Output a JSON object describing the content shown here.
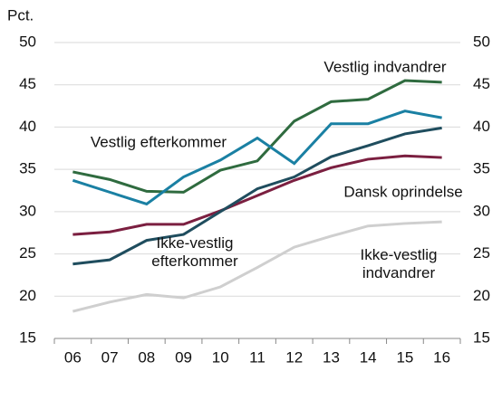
{
  "chart_data": {
    "type": "line",
    "y_label": "Pct.",
    "categories": [
      "06",
      "07",
      "08",
      "09",
      "10",
      "11",
      "12",
      "13",
      "14",
      "15",
      "16"
    ],
    "series": [
      {
        "name": "Vestlig indvandrer",
        "color": "#2f6b3f",
        "values": [
          34.7,
          33.8,
          32.4,
          32.3,
          34.9,
          36.0,
          40.7,
          43.0,
          43.3,
          45.5,
          45.3
        ]
      },
      {
        "name": "Vestlig efterkommer",
        "color": "#1a80a3",
        "values": [
          33.7,
          32.3,
          30.9,
          34.1,
          36.1,
          38.7,
          35.7,
          40.4,
          40.4,
          41.9,
          41.1
        ]
      },
      {
        "name": "Dansk oprindelse",
        "color": "#7b1f40",
        "values": [
          27.3,
          27.6,
          28.5,
          28.5,
          30.1,
          31.9,
          33.7,
          35.2,
          36.2,
          36.6,
          36.4
        ]
      },
      {
        "name": "Ikke-vestlig efterkommer",
        "color": "#1f4d5e",
        "values": [
          23.8,
          24.3,
          26.6,
          27.3,
          30.0,
          32.7,
          34.1,
          36.5,
          37.8,
          39.2,
          39.9
        ]
      },
      {
        "name": "Ikke-vestlig indvandrer",
        "color": "#cfcfcf",
        "values": [
          18.2,
          19.3,
          20.2,
          19.8,
          21.1,
          23.4,
          25.8,
          27.1,
          28.3,
          28.6,
          28.8
        ]
      }
    ],
    "ylim": [
      15,
      50
    ],
    "yticks": [
      15,
      20,
      25,
      30,
      35,
      40,
      45,
      50
    ],
    "grid": true
  }
}
